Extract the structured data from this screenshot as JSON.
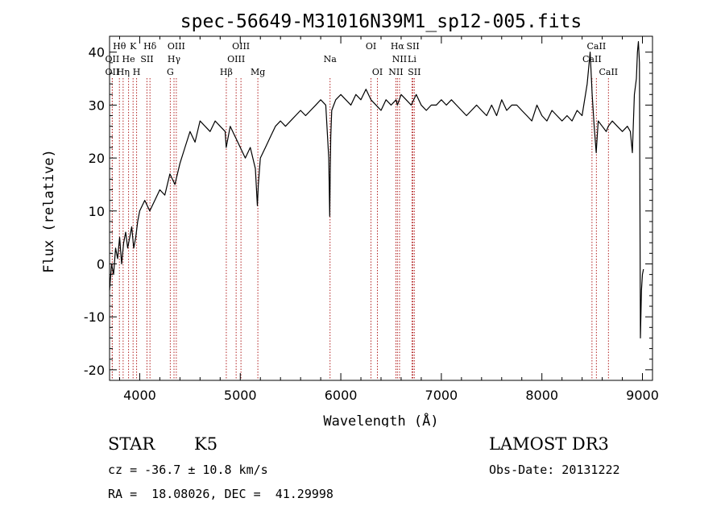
{
  "chart_data": {
    "type": "line",
    "title": "spec-56649-M31016N39M1_sp12-005.fits",
    "xlabel": "Wavelength (Å)",
    "ylabel": "Flux (relative)",
    "xlim": [
      3700,
      9100
    ],
    "ylim": [
      -22,
      43
    ],
    "x_ticks": [
      4000,
      5000,
      6000,
      7000,
      8000,
      9000
    ],
    "y_ticks": [
      -20,
      -10,
      0,
      10,
      20,
      30,
      40
    ],
    "grid": false,
    "line_color": "#000000",
    "marker_line_color": "#b22222",
    "series": [
      {
        "x": [
          3700,
          3720,
          3740,
          3760,
          3780,
          3800,
          3820,
          3840,
          3860,
          3880,
          3900,
          3920,
          3940,
          3960,
          3980,
          4000,
          4050,
          4100,
          4150,
          4200,
          4250,
          4300,
          4350,
          4400,
          4450,
          4500,
          4550,
          4600,
          4650,
          4700,
          4750,
          4800,
          4850,
          4860,
          4900,
          4950,
          5000,
          5050,
          5100,
          5150,
          5170,
          5180,
          5200,
          5250,
          5300,
          5350,
          5400,
          5450,
          5500,
          5550,
          5600,
          5650,
          5700,
          5750,
          5800,
          5850,
          5880,
          5890,
          5895,
          5900,
          5910,
          5930,
          5950,
          6000,
          6050,
          6100,
          6150,
          6200,
          6250,
          6300,
          6350,
          6400,
          6450,
          6500,
          6550,
          6563,
          6600,
          6650,
          6700,
          6750,
          6800,
          6850,
          6900,
          6950,
          7000,
          7050,
          7100,
          7150,
          7200,
          7250,
          7300,
          7350,
          7400,
          7450,
          7500,
          7550,
          7600,
          7650,
          7700,
          7750,
          7800,
          7850,
          7900,
          7950,
          8000,
          8050,
          8100,
          8150,
          8200,
          8250,
          8300,
          8350,
          8400,
          8450,
          8480,
          8500,
          8520,
          8540,
          8560,
          8600,
          8640,
          8660,
          8700,
          8750,
          8800,
          8850,
          8880,
          8900,
          8920,
          8940,
          8950,
          8960,
          8970,
          8980,
          8990,
          9000,
          9010
        ],
        "y": [
          -5,
          0,
          -2,
          3,
          1,
          5,
          0,
          4,
          6,
          3,
          5,
          7,
          3,
          5,
          8,
          10,
          12,
          10,
          12,
          14,
          13,
          17,
          15,
          19,
          22,
          25,
          23,
          27,
          26,
          25,
          27,
          26,
          25,
          22,
          26,
          24,
          22,
          20,
          22,
          18,
          11,
          15,
          20,
          22,
          24,
          26,
          27,
          26,
          27,
          28,
          29,
          28,
          29,
          30,
          31,
          30,
          20,
          9,
          18,
          24,
          29,
          30,
          31,
          32,
          31,
          30,
          32,
          31,
          33,
          31,
          30,
          29,
          31,
          30,
          31,
          30,
          32,
          31,
          30,
          32,
          30,
          29,
          30,
          30,
          31,
          30,
          31,
          30,
          29,
          28,
          29,
          30,
          29,
          28,
          30,
          28,
          31,
          29,
          30,
          30,
          29,
          28,
          27,
          30,
          28,
          27,
          29,
          28,
          27,
          28,
          27,
          29,
          28,
          34,
          40,
          32,
          26,
          21,
          27,
          26,
          25,
          26,
          27,
          26,
          25,
          26,
          25,
          21,
          32,
          35,
          40,
          42,
          38,
          -14,
          -5,
          -2,
          -1
        ]
      }
    ],
    "line_markers": [
      {
        "label": "Hθ",
        "x": 3798,
        "row": 0
      },
      {
        "label": "OII",
        "x": 3727,
        "row": 1
      },
      {
        "label": "OII",
        "x": 3727,
        "row": 2
      },
      {
        "label": "Hη",
        "x": 3835,
        "row": 2
      },
      {
        "label": "He",
        "x": 3889,
        "row": 1
      },
      {
        "label": "K",
        "x": 3934,
        "row": 0
      },
      {
        "label": "H",
        "x": 3969,
        "row": 2
      },
      {
        "label": "Hδ",
        "x": 4102,
        "row": 0
      },
      {
        "label": "SII",
        "x": 4072,
        "row": 1
      },
      {
        "label": "OIII",
        "x": 4364,
        "row": 0
      },
      {
        "label": "Hγ",
        "x": 4341,
        "row": 1
      },
      {
        "label": "G",
        "x": 4304,
        "row": 2
      },
      {
        "label": "OIII",
        "x": 5007,
        "row": 0
      },
      {
        "label": "OIII",
        "x": 4959,
        "row": 1
      },
      {
        "label": "Hβ",
        "x": 4861,
        "row": 2
      },
      {
        "label": "Mg",
        "x": 5175,
        "row": 2
      },
      {
        "label": "Na",
        "x": 5893,
        "row": 1
      },
      {
        "label": "OI",
        "x": 6300,
        "row": 0
      },
      {
        "label": "OI",
        "x": 6364,
        "row": 2
      },
      {
        "label": "Hα",
        "x": 6563,
        "row": 0
      },
      {
        "label": "SII",
        "x": 6717,
        "row": 0
      },
      {
        "label": "NII",
        "x": 6584,
        "row": 1
      },
      {
        "label": "Li",
        "x": 6708,
        "row": 1
      },
      {
        "label": "NII",
        "x": 6548,
        "row": 2
      },
      {
        "label": "SII",
        "x": 6731,
        "row": 2
      },
      {
        "label": "CaII",
        "x": 8542,
        "row": 0
      },
      {
        "label": "CaII",
        "x": 8498,
        "row": 1
      },
      {
        "label": "CaII",
        "x": 8662,
        "row": 2
      }
    ]
  },
  "info": {
    "class_label": "STAR",
    "subclass_label": "K5",
    "survey_label": "LAMOST DR3",
    "redshift_text": "cz = -36.7 ± 10.8 km/s",
    "obs_date_text": "Obs-Date: 20131222",
    "coords_text": "RA =  18.08026, DEC =  41.29998"
  }
}
